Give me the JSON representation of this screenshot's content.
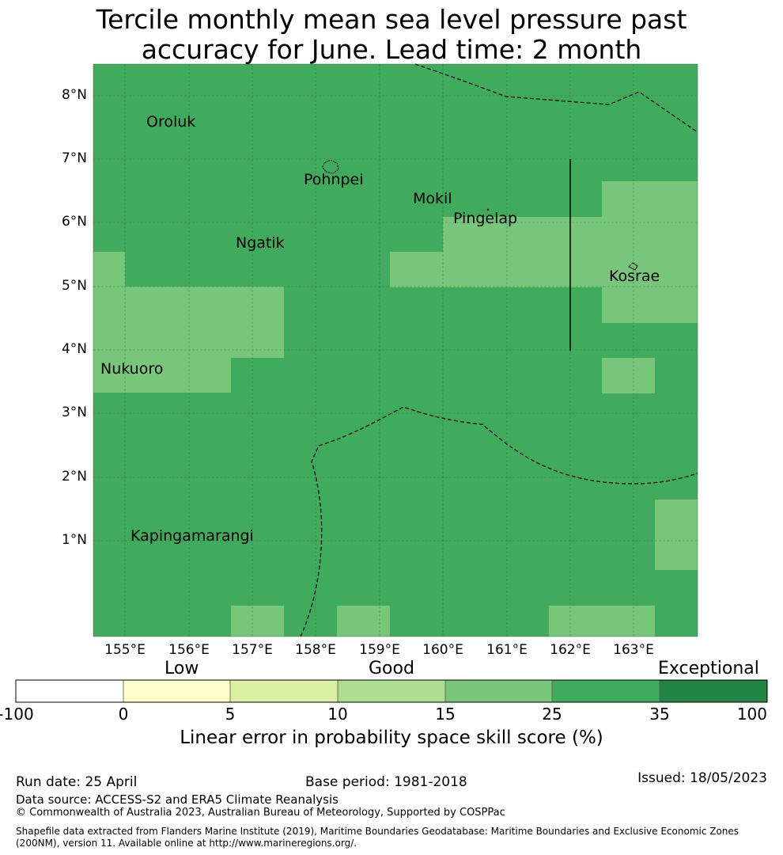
{
  "title_line1": "Tercile monthly mean sea level pressure past",
  "title_line2": "accuracy for June. Lead time: 2 month",
  "map": {
    "lon_range": [
      154.5,
      164.0
    ],
    "lat_range": [
      -0.3,
      8.5
    ],
    "lat_labels": [
      "8°N",
      "7°N",
      "6°N",
      "5°N",
      "4°N",
      "3°N",
      "2°N",
      "1°N"
    ],
    "lon_labels": [
      "155°E",
      "156°E",
      "157°E",
      "158°E",
      "159°E",
      "160°E",
      "161°E",
      "162°E",
      "163°E"
    ],
    "places": {
      "oroluk": "Oroluk",
      "pohnpei": "Pohnpei",
      "mokil": "Mokil",
      "pingelap": "Pingelap",
      "ngatik": "Ngatik",
      "kosrae": "Kosrae",
      "nukuoro": "Nukuoro",
      "kapingamarangi": "Kapingamarangi"
    },
    "colors": {
      "base": "#41ab5d",
      "lighter": "#78c679"
    }
  },
  "colorbar": {
    "categories": {
      "low": "Low",
      "good": "Good",
      "exceptional": "Exceptional"
    },
    "ticks": [
      "-100",
      "0",
      "5",
      "10",
      "15",
      "25",
      "35",
      "100"
    ],
    "colors": [
      "#ffffff",
      "#ffffcc",
      "#d9f0a3",
      "#addd8e",
      "#78c679",
      "#41ab5d",
      "#238443"
    ],
    "label": "Linear error in probability space skill score (%)"
  },
  "footer": {
    "run_date": "Run date: 25 April",
    "base_period": "Base period: 1981-2018",
    "issued": "Issued: 18/05/2023",
    "data_source": "Data source: ACCESS-S2 and ERA5 Climate Reanalysis",
    "copyright": "© Commonwealth of Australia 2023, Australian Bureau of Meteorology, Supported by COSPPac",
    "shapefile": "Shapefile data extracted from Flanders Marine Institute (2019), Maritime Boundaries Geodatabase: Maritime Boundaries and Exclusive Economic Zones (200NM), version 11. Available online at http://www.marineregions.org/."
  }
}
